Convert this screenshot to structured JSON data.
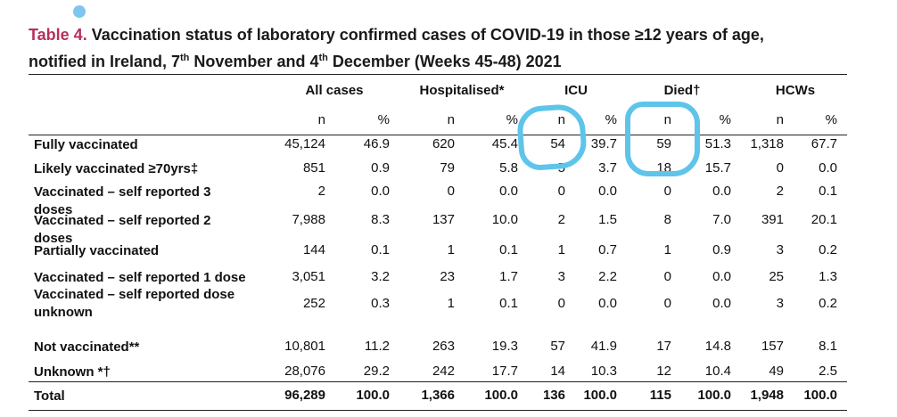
{
  "marker_color": "#7fc6ee",
  "title": {
    "label": "Table 4",
    "dot": ".",
    "line1_rest": " Vaccination status of laboratory confirmed cases of COVID-19 in those ≥12 years of age,",
    "line2_a": "notified in Ireland, 7",
    "sup1": "th",
    "line2_b": " November and 4",
    "sup2": "th",
    "line2_c": " December (Weeks 45-48) 2021"
  },
  "groups": [
    "All cases",
    "Hospitalised*",
    "ICU",
    "Died†",
    "HCWs"
  ],
  "subheaders": [
    "n",
    "%",
    "n",
    "%",
    "n",
    "%",
    "n",
    "%",
    "n",
    "%"
  ],
  "rows": [
    {
      "label": "Fully vaccinated",
      "values": [
        "45,124",
        "46.9",
        "620",
        "45.4",
        "54",
        "39.7",
        "59",
        "51.3",
        "1,318",
        "67.7"
      ]
    },
    {
      "label": "Likely vaccinated ≥70yrs‡",
      "values": [
        "851",
        "0.9",
        "79",
        "5.8",
        "5",
        "3.7",
        "18",
        "15.7",
        "0",
        "0.0"
      ]
    },
    {
      "label": "Vaccinated – self reported 3 doses",
      "values": [
        "2",
        "0.0",
        "0",
        "0.0",
        "0",
        "0.0",
        "0",
        "0.0",
        "2",
        "0.1"
      ]
    },
    {
      "label": "Vaccinated – self reported 2 doses",
      "values": [
        "7,988",
        "8.3",
        "137",
        "10.0",
        "2",
        "1.5",
        "8",
        "7.0",
        "391",
        "20.1"
      ]
    },
    {
      "label": "Partially vaccinated",
      "values": [
        "144",
        "0.1",
        "1",
        "0.1",
        "1",
        "0.7",
        "1",
        "0.9",
        "3",
        "0.2"
      ]
    },
    {
      "label": "Vaccinated – self reported 1 dose",
      "values": [
        "3,051",
        "3.2",
        "23",
        "1.7",
        "3",
        "2.2",
        "0",
        "0.0",
        "25",
        "1.3"
      ]
    },
    {
      "label": "Vaccinated – self reported dose unknown",
      "values": [
        "252",
        "0.3",
        "1",
        "0.1",
        "0",
        "0.0",
        "0",
        "0.0",
        "3",
        "0.2"
      ]
    },
    {
      "label": "Not vaccinated**",
      "values": [
        "10,801",
        "11.2",
        "263",
        "19.3",
        "57",
        "41.9",
        "17",
        "14.8",
        "157",
        "8.1"
      ]
    },
    {
      "label": "Unknown *†",
      "values": [
        "28,076",
        "29.2",
        "242",
        "17.7",
        "14",
        "10.3",
        "12",
        "10.4",
        "49",
        "2.5"
      ]
    }
  ],
  "total": {
    "label": "Total",
    "values": [
      "96,289",
      "100.0",
      "1,366",
      "100.0",
      "136",
      "100.0",
      "115",
      "100.0",
      "1,948",
      "100.0"
    ]
  },
  "annotation_color": "#5ec4ea"
}
